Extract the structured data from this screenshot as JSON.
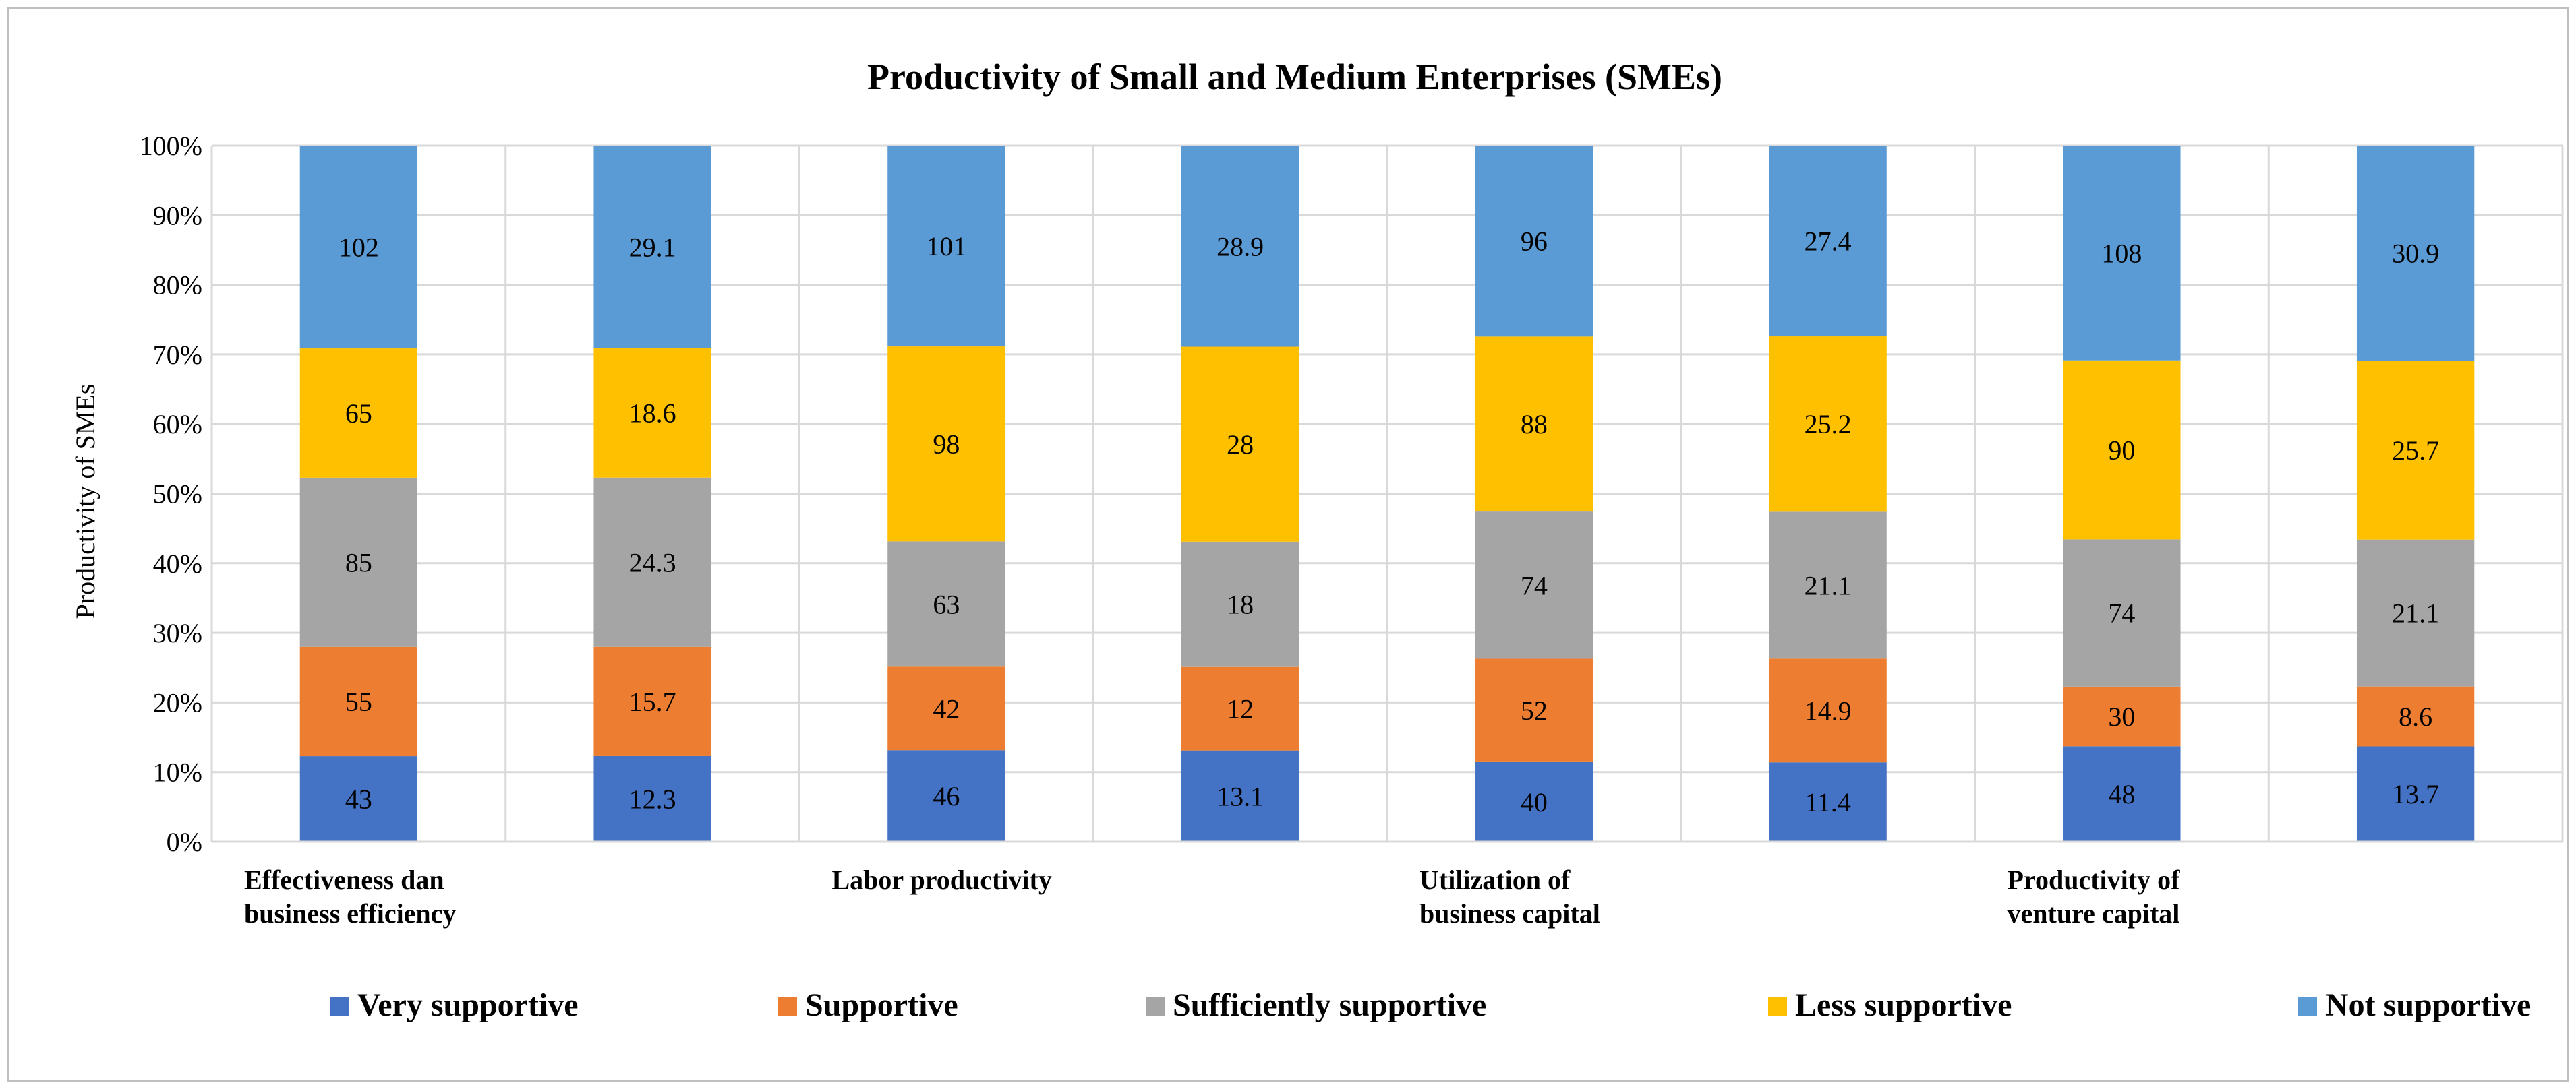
{
  "chart_data": {
    "type": "bar",
    "stacked": true,
    "normalized": true,
    "title": "Productivity of Small and Medium Enterprises (SMEs)",
    "xlabel": "",
    "ylabel": "Productivity of SMEs",
    "ylim": [
      0,
      100
    ],
    "yticks": [
      "0%",
      "10%",
      "20%",
      "30%",
      "40%",
      "50%",
      "60%",
      "70%",
      "80%",
      "90%",
      "100%"
    ],
    "group_labels": [
      [
        "Effectiveness dan",
        "business efficiency"
      ],
      [
        "Labor productivity"
      ],
      [
        "Utilization of",
        "business capital"
      ],
      [
        "Productivity of",
        "venture capital"
      ]
    ],
    "bars_per_group": 2,
    "series": [
      {
        "name": "Very supportive",
        "color": "#4472c4",
        "values": [
          43,
          12.3,
          46,
          13.1,
          40,
          11.4,
          48,
          13.7
        ]
      },
      {
        "name": "Supportive",
        "color": "#ed7d31",
        "values": [
          55,
          15.7,
          42,
          12,
          52,
          14.9,
          30,
          8.6
        ]
      },
      {
        "name": "Sufficiently supportive",
        "color": "#a5a5a5",
        "values": [
          85,
          24.3,
          63,
          18,
          74,
          21.1,
          74,
          21.1
        ]
      },
      {
        "name": "Less supportive",
        "color": "#ffc000",
        "values": [
          65,
          18.6,
          98,
          28,
          88,
          25.2,
          90,
          25.7
        ]
      },
      {
        "name": "Not supportive",
        "color": "#5b9bd5",
        "values": [
          102,
          29.1,
          101,
          28.9,
          96,
          27.4,
          108,
          30.9
        ]
      }
    ],
    "grid": true,
    "legend": "bottom"
  }
}
